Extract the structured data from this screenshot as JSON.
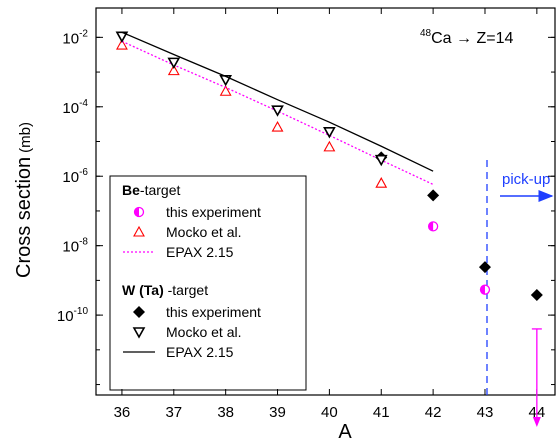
{
  "chart_data": {
    "type": "scatter",
    "reaction": {
      "mass": "48",
      "text": "Ca → Z=14"
    },
    "xlabel": "A",
    "ylabel": "Cross section",
    "yunit": "(mb)",
    "log_y": true,
    "xlim": [
      35.5,
      44.35
    ],
    "ylim": [
      5e-13,
      0.07
    ],
    "xticks": [
      36,
      37,
      38,
      39,
      40,
      41,
      42,
      43,
      44
    ],
    "yticks": [
      {
        "value": 0.01,
        "label": "10",
        "exponent": "-2"
      },
      {
        "value": 0.0001,
        "label": "10",
        "exponent": "-4"
      },
      {
        "value": 1e-06,
        "label": "10",
        "exponent": "-6"
      },
      {
        "value": 1e-08,
        "label": "10",
        "exponent": "-8"
      },
      {
        "value": 1e-10,
        "label": "10",
        "exponent": "-10"
      }
    ],
    "pickup_label": "pick-up",
    "groups": [
      {
        "title_bold": "Be",
        "title_rest": "-target",
        "series": [
          {
            "name": "this experiment",
            "marker": "half-circle",
            "color": "#ff00ff",
            "x": [
              42,
              43,
              44
            ],
            "values": [
              3.6e-08,
              5.4e-10,
              4e-11
            ],
            "upper_limit": [
              false,
              false,
              true
            ]
          },
          {
            "name": "Mocko et al.",
            "marker": "triangle-up",
            "color": "#ff0000",
            "x": [
              36,
              37,
              38,
              39,
              40,
              41
            ],
            "values": [
              0.006,
              0.0011,
              0.00028,
              2.6e-05,
              7e-06,
              6.3e-07
            ]
          },
          {
            "name": "EPAX 2.15",
            "marker": "dotted-line",
            "color": "#ff00ff",
            "x": [
              36,
              37,
              38,
              39,
              40,
              41,
              42
            ],
            "values": [
              0.0077,
              0.0016,
              0.00036,
              7.5e-05,
              1.5e-05,
              2.9e-06,
              5.8e-07
            ]
          }
        ]
      },
      {
        "title_bold": "W (Ta)",
        "title_rest": " -target",
        "series": [
          {
            "name": "this experiment",
            "marker": "diamond",
            "color": "#000000",
            "x": [
              41,
              42,
              43,
              44
            ],
            "values": [
              3.5e-06,
              2.8e-07,
              2.4e-09,
              3.8e-10
            ]
          },
          {
            "name": "Mocko et al.",
            "marker": "triangle-down",
            "color": "#000000",
            "x": [
              36,
              37,
              38,
              39,
              40,
              41
            ],
            "values": [
              0.0107,
              0.0019,
              0.0006,
              8e-05,
              1.9e-05,
              3e-06
            ]
          },
          {
            "name": "EPAX 2.15",
            "marker": "line",
            "color": "#000000",
            "x": [
              36,
              37,
              38,
              39,
              40,
              41,
              42
            ],
            "values": [
              0.014,
              0.0032,
              0.00075,
              0.00016,
              3.6e-05,
              7.3e-06,
              1.4e-06
            ]
          }
        ]
      }
    ]
  }
}
